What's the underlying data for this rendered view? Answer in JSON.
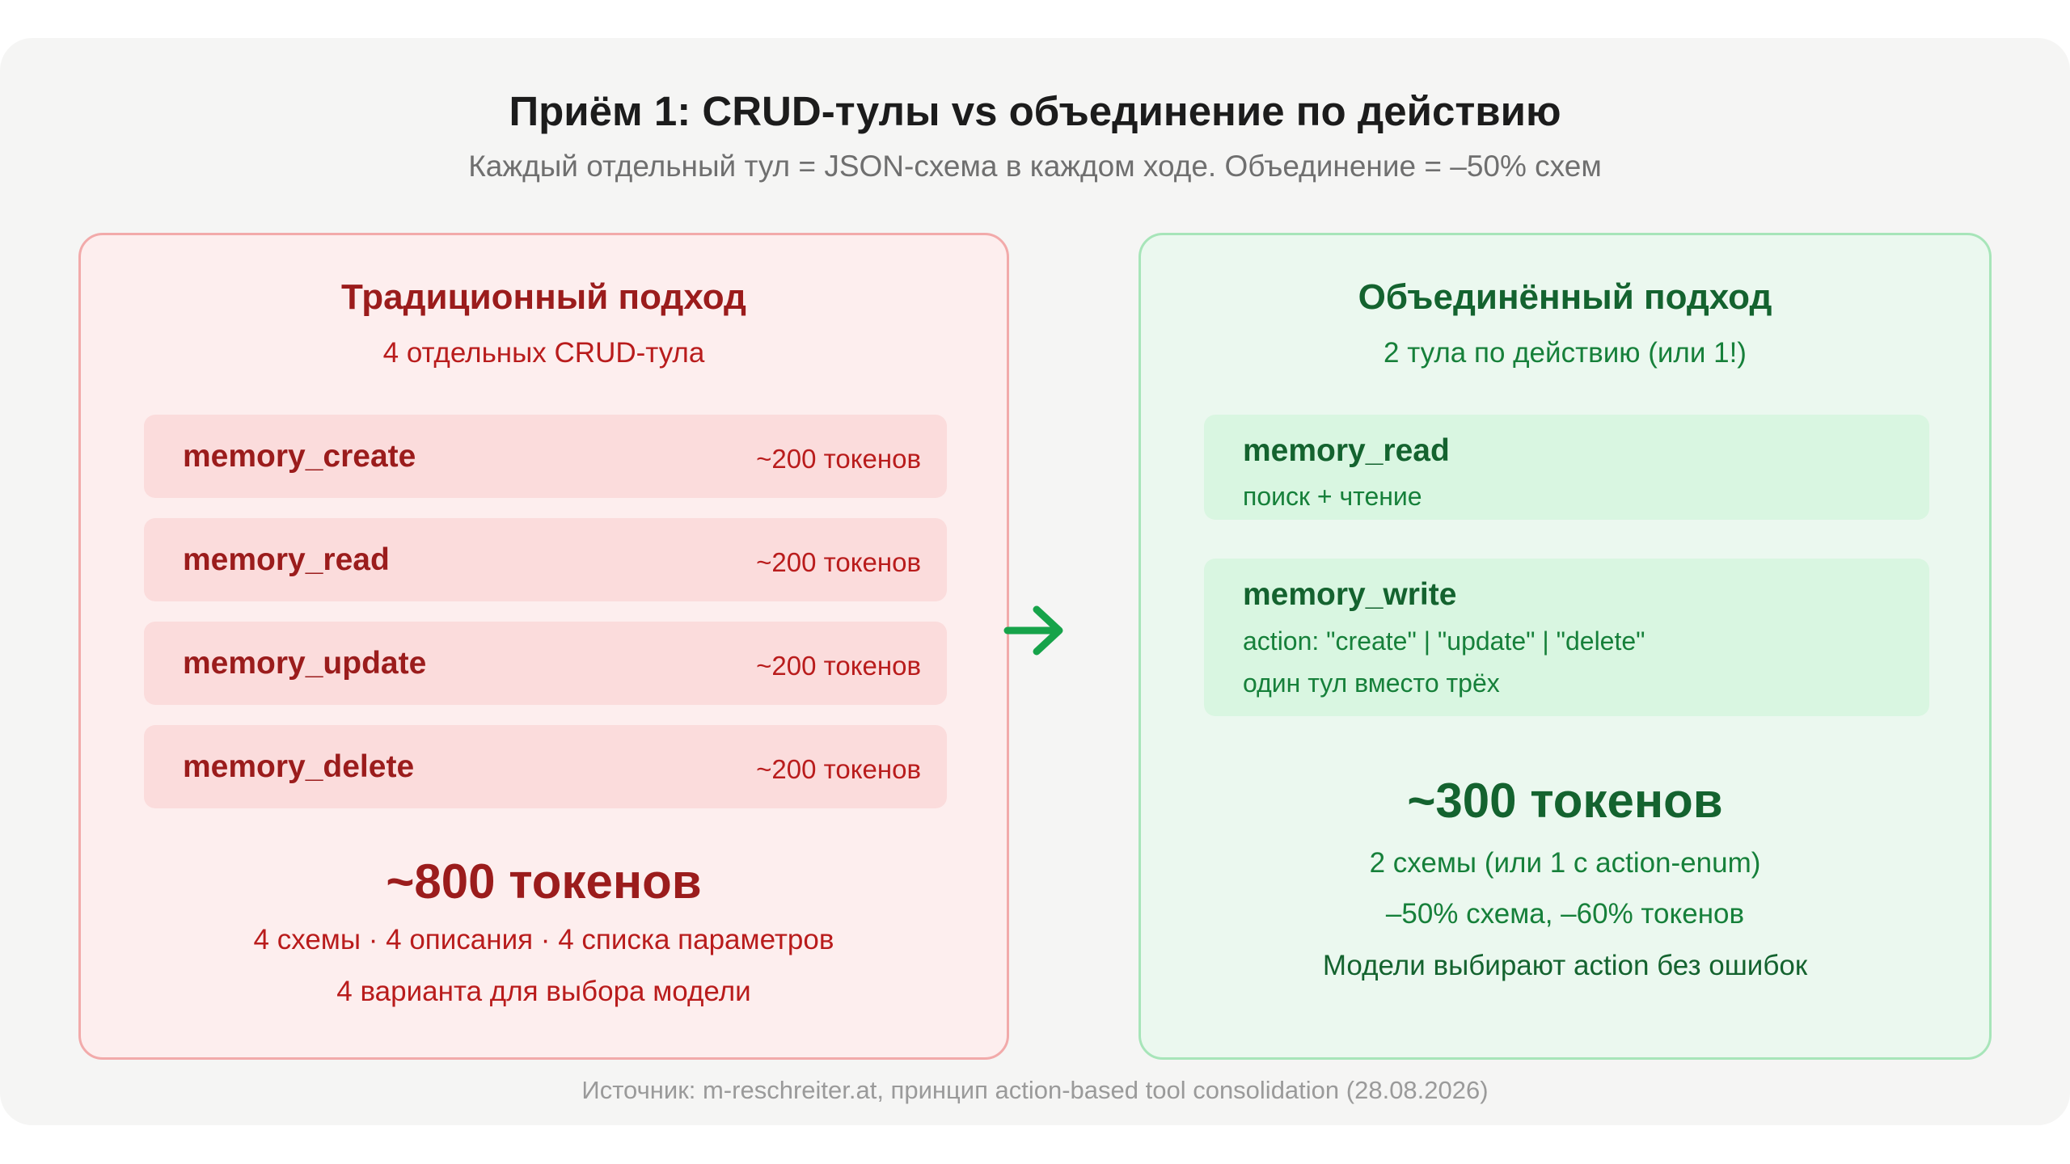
{
  "header": {
    "title": "Приём 1: CRUD-тулы vs объединение по действию",
    "subtitle": "Каждый отдельный тул = JSON-схема в каждом ходе. Объединение = –50% схем"
  },
  "traditional": {
    "heading": "Традиционный подход",
    "subheading": "4 отдельных CRUD-тула",
    "tools": [
      {
        "name": "memory_create",
        "cost": "~200 токенов"
      },
      {
        "name": "memory_read",
        "cost": "~200 токенов"
      },
      {
        "name": "memory_update",
        "cost": "~200 токенов"
      },
      {
        "name": "memory_delete",
        "cost": "~200 токенов"
      }
    ],
    "total": "~800 токенов",
    "notes": [
      "4 схемы · 4 описания · 4 списка параметров",
      "4 варианта для выбора модели"
    ]
  },
  "combined": {
    "heading": "Объединённый подход",
    "subheading": "2 тула по действию (или 1!)",
    "tools": [
      {
        "name": "memory_read",
        "lines": [
          "поиск + чтение"
        ]
      },
      {
        "name": "memory_write",
        "lines": [
          "action: \"create\" | \"update\" | \"delete\"",
          "один тул вместо трёх"
        ]
      }
    ],
    "total": "~300 токенов",
    "notes": [
      "2 схемы (или 1 с action-enum)",
      "–50% схема, –60% токенов",
      "Модели выбирают action без ошибок"
    ]
  },
  "arrow_icon": "arrow-right-icon",
  "colors": {
    "red_text": "#9b1c1c",
    "green_text": "#14632f",
    "arrow": "#16a34a"
  },
  "footer": "Источник: m-reschreiter.at, принцип action-based tool consolidation (28.08.2026)"
}
